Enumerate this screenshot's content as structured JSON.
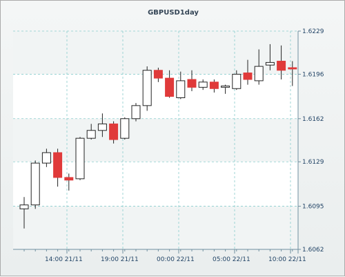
{
  "chart_data": {
    "type": "candlestick",
    "title": "GBPUSD1day",
    "ylim": [
      1.6062,
      1.6229
    ],
    "y_ticks": [
      "1.6229",
      "1.6196",
      "1.6162",
      "1.6129",
      "1.6095",
      "1.6062"
    ],
    "x_tick_labels": [
      "14:00 21/11",
      "19:00 21/11",
      "00:00 22/11",
      "05:00 22/11",
      "10:00 22/11"
    ],
    "grid": true,
    "candles": [
      {
        "o": 1.6093,
        "h": 1.6102,
        "l": 1.6078,
        "c": 1.6096
      },
      {
        "o": 1.6096,
        "h": 1.613,
        "l": 1.6093,
        "c": 1.6128
      },
      {
        "o": 1.6128,
        "h": 1.6139,
        "l": 1.6125,
        "c": 1.6136
      },
      {
        "o": 1.6136,
        "h": 1.6139,
        "l": 1.611,
        "c": 1.6117
      },
      {
        "o": 1.6117,
        "h": 1.612,
        "l": 1.6107,
        "c": 1.6115
      },
      {
        "o": 1.6116,
        "h": 1.6148,
        "l": 1.6115,
        "c": 1.6147
      },
      {
        "o": 1.6147,
        "h": 1.6158,
        "l": 1.6146,
        "c": 1.6153
      },
      {
        "o": 1.6153,
        "h": 1.6166,
        "l": 1.6148,
        "c": 1.6158
      },
      {
        "o": 1.6158,
        "h": 1.616,
        "l": 1.6143,
        "c": 1.6146
      },
      {
        "o": 1.6147,
        "h": 1.6163,
        "l": 1.6146,
        "c": 1.6162
      },
      {
        "o": 1.6162,
        "h": 1.6174,
        "l": 1.616,
        "c": 1.6172
      },
      {
        "o": 1.6172,
        "h": 1.6202,
        "l": 1.6168,
        "c": 1.6199
      },
      {
        "o": 1.6199,
        "h": 1.6201,
        "l": 1.619,
        "c": 1.6193
      },
      {
        "o": 1.6193,
        "h": 1.6199,
        "l": 1.6178,
        "c": 1.6179
      },
      {
        "o": 1.6178,
        "h": 1.6198,
        "l": 1.6177,
        "c": 1.6191
      },
      {
        "o": 1.6192,
        "h": 1.6199,
        "l": 1.6183,
        "c": 1.6186
      },
      {
        "o": 1.6186,
        "h": 1.6192,
        "l": 1.6184,
        "c": 1.619
      },
      {
        "o": 1.619,
        "h": 1.6192,
        "l": 1.6182,
        "c": 1.6185
      },
      {
        "o": 1.6186,
        "h": 1.6188,
        "l": 1.6181,
        "c": 1.6187
      },
      {
        "o": 1.6185,
        "h": 1.6199,
        "l": 1.6184,
        "c": 1.6196
      },
      {
        "o": 1.6197,
        "h": 1.6207,
        "l": 1.6188,
        "c": 1.6192
      },
      {
        "o": 1.6191,
        "h": 1.6215,
        "l": 1.6188,
        "c": 1.6202
      },
      {
        "o": 1.6203,
        "h": 1.6219,
        "l": 1.6199,
        "c": 1.6205
      },
      {
        "o": 1.6206,
        "h": 1.6218,
        "l": 1.6192,
        "c": 1.6199
      },
      {
        "o": 1.6201,
        "h": 1.6206,
        "l": 1.6187,
        "c": 1.62
      }
    ],
    "colors": {
      "up_fill": "#ffffff",
      "down_fill": "#e03a3a",
      "candle_stroke": "#222222",
      "grid": "#88cccc",
      "axis": "#6f8f9f",
      "label": "#224466"
    }
  }
}
